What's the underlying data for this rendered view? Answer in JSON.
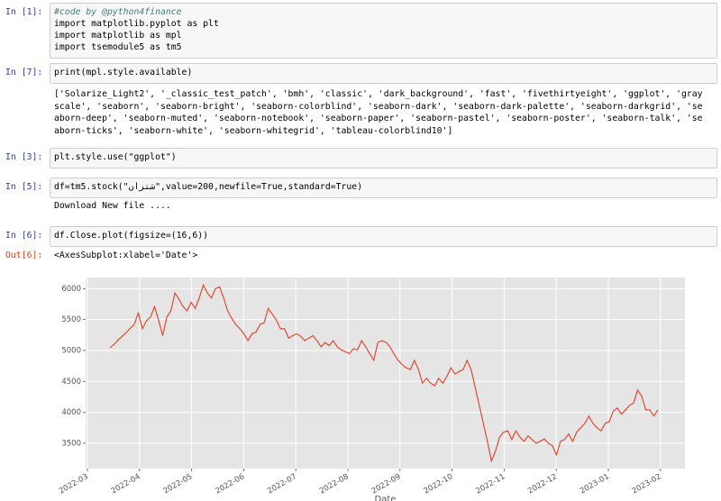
{
  "cells": [
    {
      "prompt": "In [1]:",
      "input": [
        "#code by @python4finance",
        "import matplotlib.pyplot as plt",
        "import matplotlib as mpl",
        "import tsemodule5 as tm5"
      ]
    },
    {
      "prompt": "In [7]:",
      "input": [
        "print(mpl.style.available)"
      ],
      "output": [
        "['Solarize_Light2', '_classic_test_patch', 'bmh', 'classic', 'dark_background', 'fast', 'fivethirtyeight', 'ggplot', 'gray",
        "scale', 'seaborn', 'seaborn-bright', 'seaborn-colorblind', 'seaborn-dark', 'seaborn-dark-palette', 'seaborn-darkgrid', 'se",
        "aborn-deep', 'seaborn-muted', 'seaborn-notebook', 'seaborn-paper', 'seaborn-pastel', 'seaborn-poster', 'seaborn-talk', 'se",
        "aborn-ticks', 'seaborn-white', 'seaborn-whitegrid', 'tableau-colorblind10']"
      ]
    },
    {
      "prompt": "In [3]:",
      "input": [
        "plt.style.use(\"ggplot\")"
      ]
    },
    {
      "prompt": "In [5]:",
      "input": [
        "df=tm5.stock(\"شتران\",value=200,newfile=True,standard=True)"
      ],
      "output": [
        "Download New file ...."
      ]
    },
    {
      "prompt": "In [6]:",
      "input": [
        "df.Close.plot(figsize=(16,6))"
      ],
      "out_prompt": "Out[6]:",
      "output": [
        "<AxesSubplot:xlabel='Date'>"
      ]
    }
  ],
  "chart_data": {
    "type": "line",
    "xlabel": "Date",
    "color": "#e24a33",
    "grid": true,
    "xticks": [
      "2022-03",
      "2022-04",
      "2022-05",
      "2022-06",
      "2022-07",
      "2022-08",
      "2022-09",
      "2022-10",
      "2022-11",
      "2022-12",
      "2023-01",
      "2023-02"
    ],
    "ylim": [
      3090,
      6180
    ],
    "yticks": [
      3500,
      4000,
      4500,
      5000,
      5500,
      6000
    ],
    "values": [
      5040,
      5100,
      5170,
      5230,
      5290,
      5360,
      5420,
      5610,
      5350,
      5480,
      5540,
      5710,
      5490,
      5240,
      5540,
      5640,
      5930,
      5830,
      5710,
      5640,
      5780,
      5680,
      5850,
      6060,
      5930,
      5850,
      6000,
      6030,
      5850,
      5640,
      5520,
      5420,
      5350,
      5270,
      5160,
      5270,
      5300,
      5420,
      5450,
      5680,
      5590,
      5490,
      5350,
      5350,
      5200,
      5240,
      5270,
      5230,
      5160,
      5200,
      5240,
      5160,
      5060,
      5130,
      5080,
      5160,
      5060,
      5010,
      4980,
      4950,
      5030,
      5010,
      5160,
      5060,
      4950,
      4840,
      5130,
      5160,
      5130,
      5060,
      4940,
      4840,
      4770,
      4720,
      4690,
      4840,
      4690,
      4470,
      4550,
      4470,
      4430,
      4550,
      4470,
      4580,
      4720,
      4620,
      4660,
      4690,
      4840,
      4690,
      4400,
      4110,
      3820,
      3530,
      3210,
      3380,
      3600,
      3680,
      3700,
      3560,
      3700,
      3600,
      3530,
      3620,
      3560,
      3500,
      3530,
      3570,
      3500,
      3460,
      3310,
      3530,
      3560,
      3650,
      3530,
      3680,
      3750,
      3820,
      3940,
      3820,
      3750,
      3700,
      3820,
      3850,
      4020,
      4070,
      3970,
      4040,
      4110,
      4150,
      4360,
      4260,
      4040,
      4040,
      3940,
      4040
    ]
  }
}
